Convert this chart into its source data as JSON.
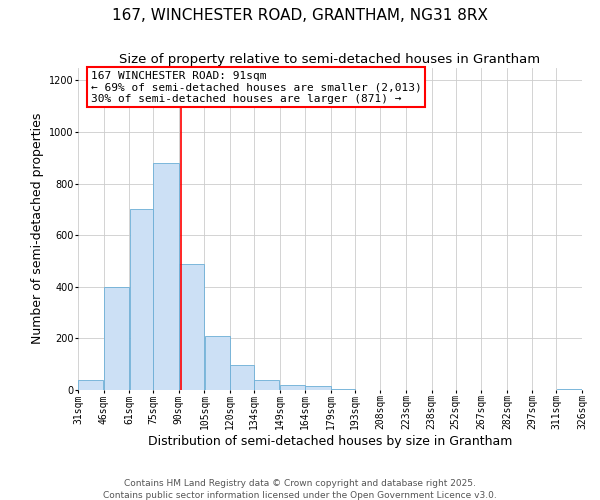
{
  "title": "167, WINCHESTER ROAD, GRANTHAM, NG31 8RX",
  "subtitle": "Size of property relative to semi-detached houses in Grantham",
  "xlabel": "Distribution of semi-detached houses by size in Grantham",
  "ylabel": "Number of semi-detached properties",
  "bar_left_edges": [
    31,
    46,
    61,
    75,
    90,
    105,
    120,
    134,
    149,
    164,
    179,
    193,
    208,
    223,
    238,
    252,
    267,
    282,
    297,
    311
  ],
  "bar_widths": [
    15,
    15,
    14,
    15,
    15,
    15,
    14,
    15,
    15,
    15,
    14,
    15,
    15,
    15,
    14,
    15,
    15,
    15,
    14,
    15
  ],
  "bar_heights": [
    40,
    400,
    700,
    880,
    490,
    210,
    95,
    40,
    20,
    15,
    5,
    0,
    0,
    0,
    0,
    0,
    0,
    0,
    0,
    5
  ],
  "xtick_labels": [
    "31sqm",
    "46sqm",
    "61sqm",
    "75sqm",
    "90sqm",
    "105sqm",
    "120sqm",
    "134sqm",
    "149sqm",
    "164sqm",
    "179sqm",
    "193sqm",
    "208sqm",
    "223sqm",
    "238sqm",
    "252sqm",
    "267sqm",
    "282sqm",
    "297sqm",
    "311sqm",
    "326sqm"
  ],
  "ylim": [
    0,
    1250
  ],
  "yticks": [
    0,
    200,
    400,
    600,
    800,
    1000,
    1200
  ],
  "bar_color": "#cce0f5",
  "bar_edge_color": "#6baed6",
  "property_line_x": 91,
  "annotation_title": "167 WINCHESTER ROAD: 91sqm",
  "annotation_line2": "← 69% of semi-detached houses are smaller (2,013)",
  "annotation_line3": "30% of semi-detached houses are larger (871) →",
  "annotation_box_facecolor": "white",
  "annotation_box_edgecolor": "red",
  "property_line_color": "red",
  "grid_color": "#cccccc",
  "background_color": "white",
  "footer_line1": "Contains HM Land Registry data © Crown copyright and database right 2025.",
  "footer_line2": "Contains public sector information licensed under the Open Government Licence v3.0.",
  "title_fontsize": 11,
  "subtitle_fontsize": 9.5,
  "axis_label_fontsize": 9,
  "tick_fontsize": 7,
  "annotation_fontsize": 8,
  "footer_fontsize": 6.5
}
